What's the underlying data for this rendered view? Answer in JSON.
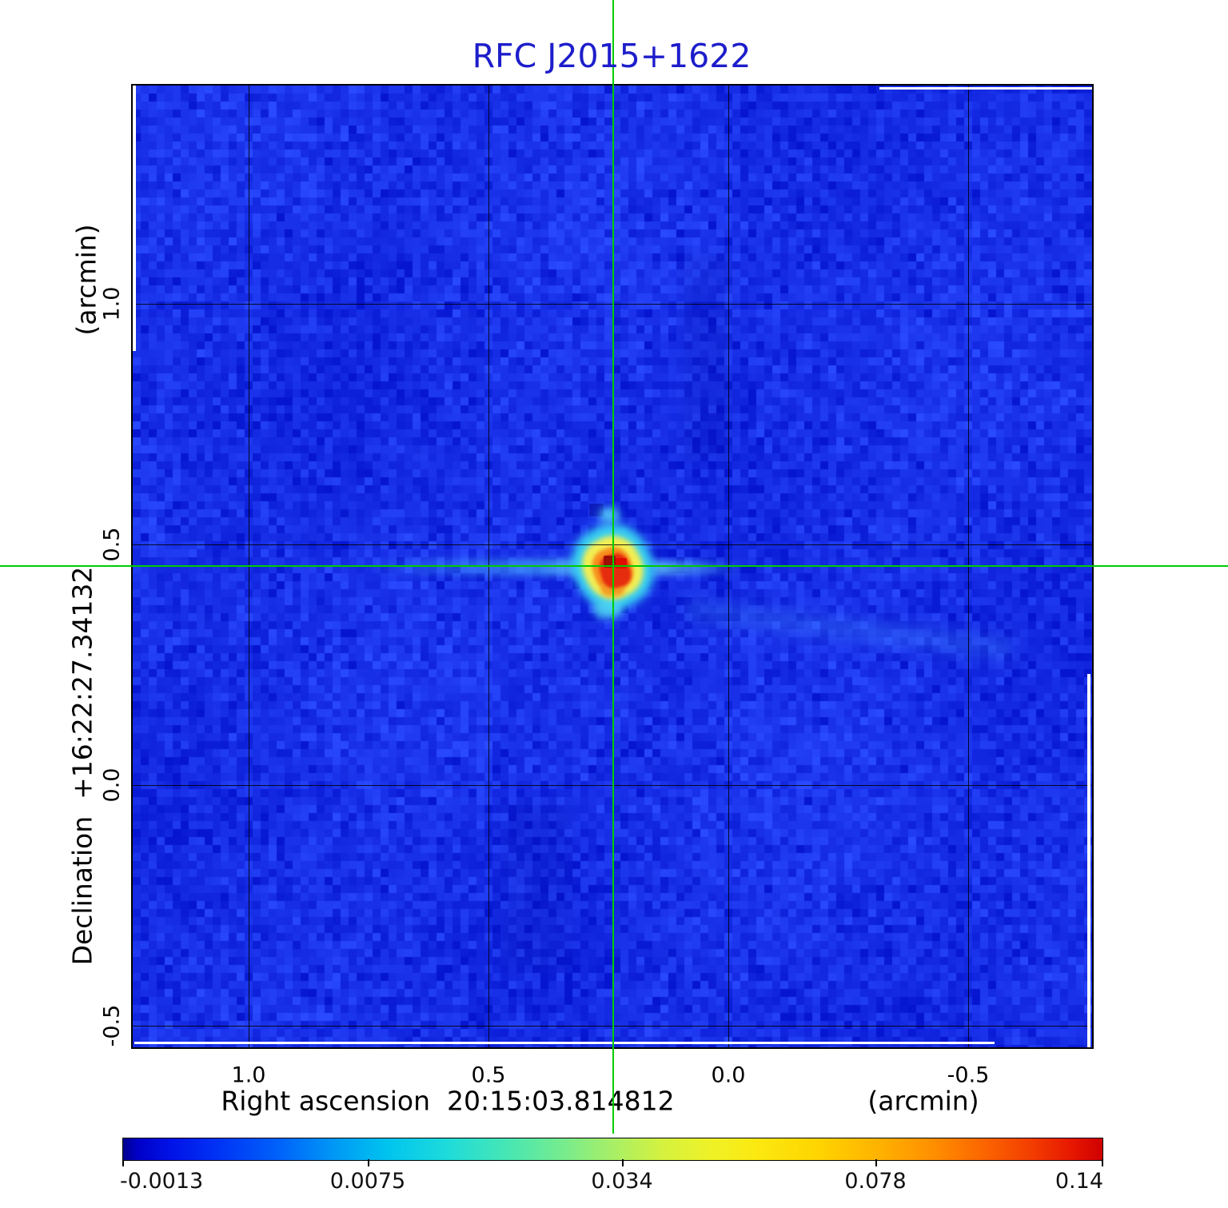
{
  "title": {
    "text": "RFC J2015+1622"
  },
  "y_axis": {
    "unit": "(arcmin)",
    "label": "Declination  +16:22:27.34132",
    "ticks": [
      "1.0",
      "0.5",
      "0.0",
      "-0.5"
    ]
  },
  "x_axis": {
    "label": "Right ascension  20:15:03.814812",
    "unit": "(arcmin)",
    "ticks": [
      "1.0",
      "0.5",
      "0.0",
      "-0.5"
    ]
  },
  "colorbar": {
    "ticks": [
      "-0.0013",
      "0.0075",
      "0.034",
      "0.078",
      "0.14"
    ]
  },
  "colors": {
    "title_blue": "#1d1dcb",
    "crosshair_green": "#00cc00",
    "map_background_blue": "#1430e8",
    "grid_black": "#000000",
    "source_core_dark_red": "#9c0f05",
    "source_red": "#df0d00",
    "source_orange": "#f78d1d",
    "source_yellow": "#f3ef52",
    "source_cyan_halo": "#38cff0",
    "colorbar_left": "#000090",
    "colorbar_right": "#cf0000"
  },
  "chart_data": {
    "type": "heatmap",
    "title": "RFC J2015+1622",
    "xlabel": "Right ascension  20:15:03.814812 (arcmin)",
    "ylabel": "Declination  +16:22:27.34132 (arcmin)",
    "x_tick_values_arcmin": [
      1.0,
      0.5,
      0.0,
      -0.5
    ],
    "y_tick_values_arcmin": [
      1.0,
      0.5,
      0.0,
      -0.5
    ],
    "x_range_arcmin": [
      1.24,
      -0.76
    ],
    "y_range_arcmin": [
      1.46,
      -0.55
    ],
    "grid": true,
    "colorbar": {
      "tick_values": [
        -0.0013,
        0.0075,
        0.034,
        0.078,
        0.14
      ],
      "min": -0.0013,
      "max": 0.14,
      "scale": "nonlinear (sqrt-like)",
      "colormap": "blue-cyan-green-yellow-orange-red rainbow",
      "orientation": "horizontal-bottom"
    },
    "source": {
      "crosshair_offset_arcmin": {
        "ra": 0.24,
        "dec": 0.46
      },
      "peak_value_at_colorbar_max": 0.14,
      "morphology": "single compact bright core (red/yellow) on blue noise background with faint horizontal sidelobe streak west of core and faint diagonal streak to southeast"
    },
    "background_noise_level": "near 0.002 (rendered as blue mottled noise)"
  }
}
